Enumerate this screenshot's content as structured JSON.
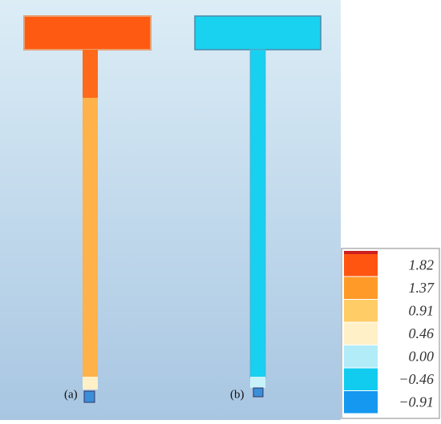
{
  "panels": [
    {
      "label": "(a)"
    },
    {
      "label": "(b)"
    }
  ],
  "legend": [
    {
      "label": "1.82",
      "color": "#ff5510"
    },
    {
      "label": "1.37",
      "color": "#ff9a28"
    },
    {
      "label": "0.91",
      "color": "#ffcc66"
    },
    {
      "label": "0.46",
      "color": "#fff0c8"
    },
    {
      "label": "0.00",
      "color": "#b2ecf8"
    },
    {
      "label": "−0.46",
      "color": "#12ccf0"
    },
    {
      "label": "−0.91",
      "color": "#1598f0"
    }
  ]
}
